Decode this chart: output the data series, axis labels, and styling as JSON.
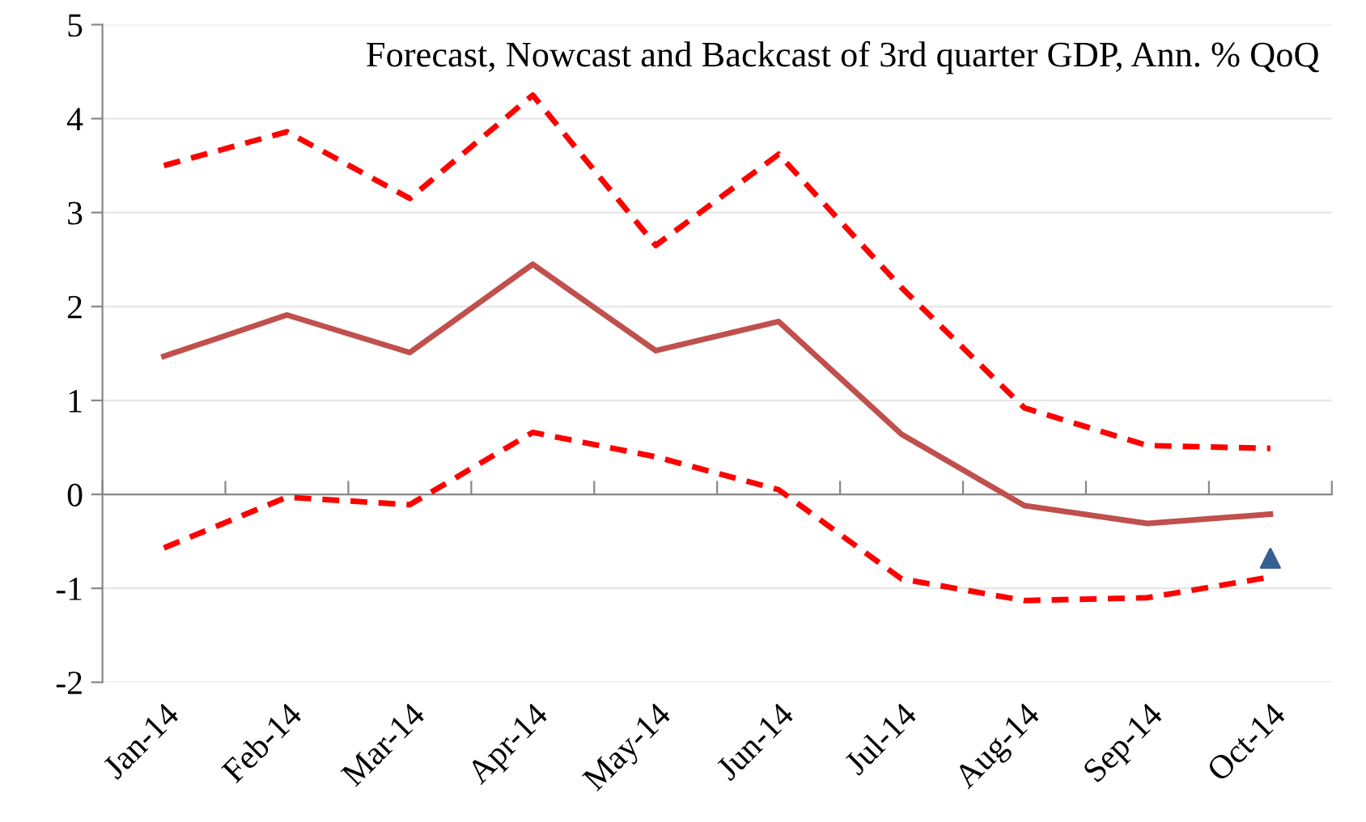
{
  "chart_data": {
    "type": "line",
    "title": "Forecast, Nowcast and Backcast of 3rd quarter GDP, Ann. % QoQ",
    "categories": [
      "Jan-14",
      "Feb-14",
      "Mar-14",
      "Apr-14",
      "May-14",
      "Jun-14",
      "Jul-14",
      "Aug-14",
      "Sep-14",
      "Oct-14"
    ],
    "series": [
      {
        "color": "#c0504d",
        "line_style": "solid",
        "values": [
          1.47,
          1.91,
          1.51,
          2.45,
          1.53,
          1.84,
          0.64,
          -0.12,
          -0.31,
          -0.21
        ]
      },
      {
        "color": "#ff0000",
        "line_style": "dashed",
        "values": [
          3.5,
          3.86,
          3.15,
          4.25,
          2.65,
          3.62,
          2.2,
          0.92,
          0.52,
          0.49
        ]
      },
      {
        "color": "#ff0000",
        "line_style": "dashed",
        "values": [
          -0.57,
          -0.03,
          -0.11,
          0.66,
          0.4,
          0.05,
          -0.9,
          -1.13,
          -1.1,
          -0.88
        ]
      },
      {
        "type": "scatter",
        "marker": "triangle",
        "color": "#376092",
        "values": [
          null,
          null,
          null,
          null,
          null,
          null,
          null,
          null,
          null,
          -0.68
        ]
      }
    ],
    "ylim": [
      -2,
      5
    ],
    "yticks": [
      -2,
      -1,
      0,
      1,
      2,
      3,
      4,
      5
    ],
    "grid": "y",
    "legend": false
  }
}
